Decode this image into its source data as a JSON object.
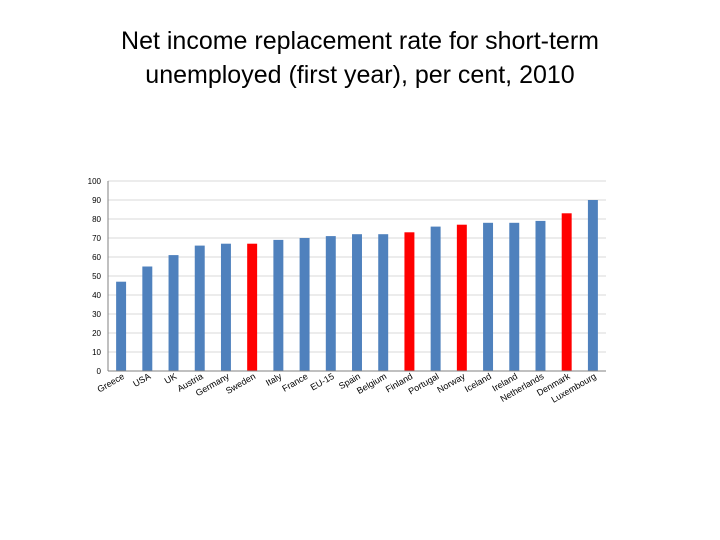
{
  "chart_data": {
    "type": "bar",
    "title_line1": "Net income replacement rate for short-term",
    "title_line2": "unemployed (first year), per cent, 2010",
    "title": "Net income replacement rate for short-term unemployed (first year), per cent, 2010",
    "xlabel": "",
    "ylabel": "",
    "ylim": [
      0,
      100
    ],
    "yticks": [
      0,
      10,
      20,
      30,
      40,
      50,
      60,
      70,
      80,
      90,
      100
    ],
    "grid": true,
    "categories": [
      "Greece",
      "USA",
      "UK",
      "Austria",
      "Germany",
      "Sweden",
      "Italy",
      "France",
      "EU-15",
      "Spain",
      "Belgium",
      "Finland",
      "Portugal",
      "Norway",
      "Iceland",
      "Ireland",
      "Netherlands",
      "Denmark",
      "Luxembourg"
    ],
    "values": [
      47,
      55,
      61,
      66,
      67,
      67,
      69,
      70,
      71,
      72,
      72,
      73,
      76,
      77,
      78,
      78,
      79,
      83,
      90
    ],
    "highlighted": [
      false,
      false,
      false,
      false,
      false,
      true,
      false,
      false,
      false,
      false,
      false,
      true,
      false,
      true,
      false,
      false,
      false,
      true,
      false
    ],
    "colors": {
      "default": "#4F81BD",
      "highlight": "#FF0000",
      "grid": "#D9D9D9",
      "axis": "#808080"
    }
  }
}
